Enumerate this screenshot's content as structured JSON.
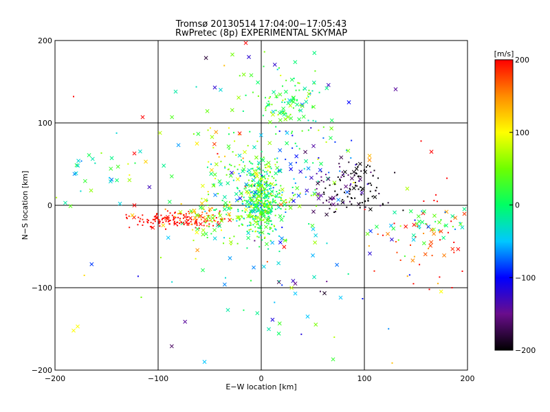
{
  "chart_data": {
    "type": "scatter",
    "title": "Tromsø 20130514 17:04:00−17:05:43",
    "subtitle": "RwPretec (8p) EXPERIMENTAL SKYMAP",
    "xlabel": "E−W location [km]",
    "ylabel": "N−S location [km]",
    "xlim": [
      -200,
      200
    ],
    "ylim": [
      -200,
      200
    ],
    "xticks": [
      -200,
      -100,
      0,
      100,
      200
    ],
    "yticks": [
      -200,
      -100,
      0,
      100,
      200
    ],
    "xtick_labels": [
      "−200",
      "−100",
      "0",
      "100",
      "200"
    ],
    "ytick_labels": [
      "−200",
      "−100",
      "0",
      "100",
      "200"
    ],
    "grid": true,
    "colorbar": {
      "label": "[m/s]",
      "range": [
        -200,
        200
      ],
      "ticks": [
        200,
        100,
        0,
        -100,
        -200
      ],
      "tick_labels": [
        "200",
        "100",
        "0",
        "−100",
        "−200"
      ],
      "colormap": [
        {
          "v": -200,
          "color": "#000000"
        },
        {
          "v": -150,
          "color": "#6a0d8c"
        },
        {
          "v": -100,
          "color": "#0000ff"
        },
        {
          "v": -50,
          "color": "#00c8ff"
        },
        {
          "v": 0,
          "color": "#00ff64"
        },
        {
          "v": 50,
          "color": "#6eff00"
        },
        {
          "v": 100,
          "color": "#ffff00"
        },
        {
          "v": 150,
          "color": "#ff8c00"
        },
        {
          "v": 200,
          "color": "#ff0000"
        }
      ]
    },
    "clusters": [
      {
        "name": "center",
        "cx": 0,
        "cy": 5,
        "sx": 9,
        "sy": 22,
        "n": 420,
        "v": 15,
        "vs": 45,
        "cross": 0.15
      },
      {
        "name": "center-wide",
        "cx": -5,
        "cy": 10,
        "sx": 30,
        "sy": 35,
        "n": 150,
        "v": 20,
        "vs": 40,
        "cross": 0.4
      },
      {
        "name": "north",
        "cx": 25,
        "cy": 125,
        "sx": 18,
        "sy": 22,
        "n": 110,
        "v": 15,
        "vs": 30,
        "cross": 0.4
      },
      {
        "name": "upper-left",
        "cx": -45,
        "cy": 60,
        "sx": 30,
        "sy": 25,
        "n": 55,
        "v": 60,
        "vs": 60,
        "cross": 0.5
      },
      {
        "name": "red-arc",
        "cx": -85,
        "cy": -18,
        "sx": 22,
        "sy": 5,
        "n": 130,
        "v": 200,
        "vs": 8,
        "cross": 0.1
      },
      {
        "name": "orange-arc",
        "cx": -60,
        "cy": -12,
        "sx": 15,
        "sy": 6,
        "n": 40,
        "v": 150,
        "vs": 20,
        "cross": 0.2
      },
      {
        "name": "left-arc-green",
        "cx": -40,
        "cy": -10,
        "sx": 15,
        "sy": 15,
        "n": 60,
        "v": 40,
        "vs": 40,
        "cross": 0.4
      },
      {
        "name": "dark-cluster",
        "cx": 95,
        "cy": 20,
        "sx": 18,
        "sy": 15,
        "n": 90,
        "v": -200,
        "vs": 10,
        "cross": 0.1
      },
      {
        "name": "purple-cluster",
        "cx": 70,
        "cy": 20,
        "sx": 15,
        "sy": 15,
        "n": 50,
        "v": -160,
        "vs": 20,
        "cross": 0.4
      },
      {
        "name": "blue-spread",
        "cx": 30,
        "cy": 40,
        "sx": 25,
        "sy": 25,
        "n": 40,
        "v": -90,
        "vs": 30,
        "cross": 0.5
      },
      {
        "name": "right-low",
        "cx": 165,
        "cy": -45,
        "sx": 25,
        "sy": 25,
        "n": 55,
        "v": 180,
        "vs": 30,
        "cross": 0.4
      },
      {
        "name": "right-green",
        "cx": 165,
        "cy": -22,
        "sx": 20,
        "sy": 10,
        "n": 40,
        "v": 0,
        "vs": 40,
        "cross": 0.6
      },
      {
        "name": "far-left",
        "cx": -155,
        "cy": 45,
        "sx": 15,
        "sy": 15,
        "n": 20,
        "v": -20,
        "vs": 40,
        "cross": 0.6
      },
      {
        "name": "lower-mid",
        "cx": 30,
        "cy": -80,
        "sx": 30,
        "sy": 30,
        "n": 25,
        "v": -60,
        "vs": 50,
        "cross": 0.7
      },
      {
        "name": "sparse-all",
        "cx": 0,
        "cy": 0,
        "sx": 110,
        "sy": 100,
        "n": 90,
        "v": 0,
        "vs": 110,
        "cross": 0.5
      }
    ],
    "points": [
      {
        "x": -182,
        "y": -152,
        "v": 100,
        "m": "x"
      },
      {
        "x": -178,
        "y": -147,
        "v": 100,
        "m": "x"
      },
      {
        "x": -55,
        "y": -190,
        "v": -50,
        "m": "x"
      },
      {
        "x": 33,
        "y": -95,
        "v": -150,
        "m": "x"
      },
      {
        "x": 33,
        "y": -107,
        "v": -50,
        "m": "x"
      },
      {
        "x": 77,
        "y": -112,
        "v": -50,
        "m": "x"
      },
      {
        "x": 45,
        "y": -135,
        "v": -50,
        "m": "x"
      },
      {
        "x": -12,
        "y": 180,
        "v": -120,
        "m": "x"
      },
      {
        "x": -15,
        "y": 197,
        "v": 200,
        "m": "x"
      },
      {
        "x": -28,
        "y": 183,
        "v": 50,
        "m": "x"
      },
      {
        "x": -45,
        "y": 143,
        "v": -120,
        "m": "x"
      },
      {
        "x": -115,
        "y": 107,
        "v": 200,
        "m": "x"
      },
      {
        "x": -83,
        "y": 138,
        "v": -20,
        "m": "x"
      },
      {
        "x": -182,
        "y": 132,
        "v": 200,
        "m": "+"
      },
      {
        "x": 85,
        "y": 125,
        "v": -100,
        "m": "x"
      },
      {
        "x": 165,
        "y": 65,
        "v": 200,
        "m": "x"
      },
      {
        "x": 155,
        "y": 78,
        "v": 200,
        "m": "+"
      },
      {
        "x": -190,
        "y": 3,
        "v": -20,
        "m": "x"
      },
      {
        "x": -185,
        "y": -1,
        "v": 40,
        "m": "x"
      },
      {
        "x": -165,
        "y": 18,
        "v": 60,
        "m": "x"
      },
      {
        "x": -123,
        "y": 63,
        "v": 200,
        "m": "x"
      },
      {
        "x": -112,
        "y": 53,
        "v": 120,
        "m": "x"
      },
      {
        "x": -123,
        "y": 0,
        "v": 200,
        "m": "x"
      },
      {
        "x": -125,
        "y": -12,
        "v": 120,
        "m": "x"
      },
      {
        "x": -137,
        "y": 2,
        "v": -40,
        "m": "x"
      },
      {
        "x": 195,
        "y": -80,
        "v": 200,
        "m": "+"
      },
      {
        "x": 185,
        "y": -100,
        "v": 200,
        "m": "+"
      },
      {
        "x": 163,
        "y": -102,
        "v": 200,
        "m": "+"
      },
      {
        "x": 105,
        "y": 60,
        "v": 130,
        "m": "x"
      },
      {
        "x": 105,
        "y": 55,
        "v": 150,
        "m": "x"
      }
    ]
  }
}
